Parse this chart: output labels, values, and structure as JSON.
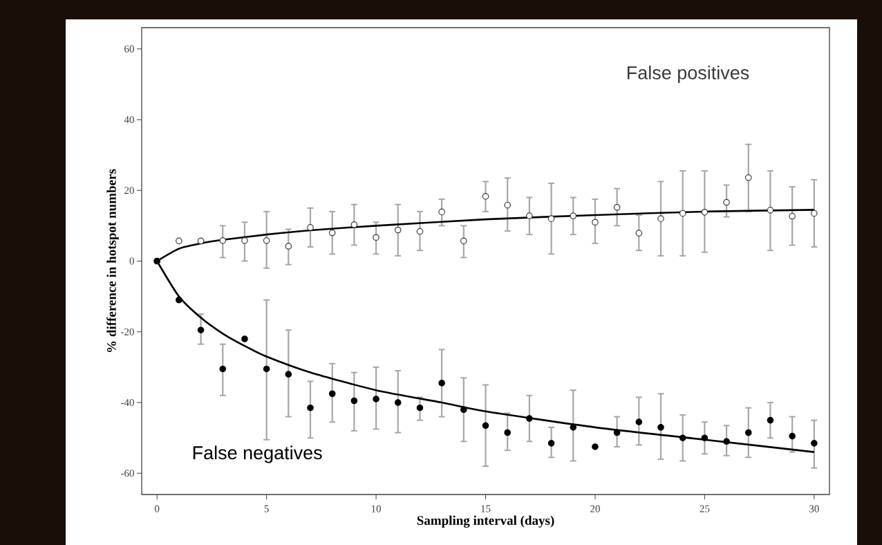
{
  "chart_data": {
    "type": "scatter",
    "xlabel": "Sampling interval (days)",
    "ylabel": "% difference in hotspot numbers",
    "x": [
      0,
      1,
      2,
      3,
      4,
      5,
      6,
      7,
      8,
      9,
      10,
      11,
      12,
      13,
      14,
      15,
      16,
      17,
      18,
      19,
      20,
      21,
      22,
      23,
      24,
      25,
      26,
      27,
      28,
      29,
      30
    ],
    "series": [
      {
        "name": "False positives",
        "color": "#3a3a3a",
        "values": [
          0,
          5.7,
          5.7,
          5.8,
          5.8,
          5.8,
          4.2,
          9.5,
          8,
          10.3,
          6.7,
          8.8,
          8.4,
          13.9,
          5.7,
          18.3,
          15.8,
          12.8,
          12,
          12.8,
          11,
          15.2,
          7.9,
          12,
          13.5,
          13.8,
          16.6,
          23.6,
          14.4,
          12.7,
          13.5
        ],
        "errors": [
          null,
          null,
          null,
          [
            1,
            10
          ],
          [
            0,
            11
          ],
          [
            -2,
            14
          ],
          [
            -1,
            9
          ],
          [
            4,
            15
          ],
          [
            2,
            14
          ],
          [
            4.5,
            16
          ],
          [
            2,
            11
          ],
          [
            1.5,
            16
          ],
          [
            3,
            14
          ],
          [
            10,
            17.5
          ],
          [
            1,
            10
          ],
          [
            14,
            22.5
          ],
          [
            8.5,
            23.5
          ],
          [
            7.5,
            18
          ],
          [
            2,
            22
          ],
          [
            7.5,
            18
          ],
          [
            5,
            17.5
          ],
          [
            10,
            20.5
          ],
          [
            3,
            13
          ],
          [
            1.5,
            22.5
          ],
          [
            1.5,
            25.5
          ],
          [
            2.5,
            25.5
          ],
          [
            12.5,
            21.5
          ],
          [
            14,
            33
          ],
          [
            3,
            25.5
          ],
          [
            4.5,
            21
          ],
          [
            4,
            23
          ]
        ]
      },
      {
        "name": "False negatives",
        "color": "#000000",
        "values": [
          0,
          -11,
          -19.5,
          -30.5,
          -22,
          -30.5,
          -32,
          -41.5,
          -37.5,
          -39.5,
          -39,
          -40,
          -41.5,
          -34.5,
          -42,
          -46.5,
          -48.5,
          -44.5,
          -51.5,
          -47,
          -52.5,
          -48.5,
          -45.5,
          -47,
          -50,
          -50,
          -51,
          -48.5,
          -45,
          -49.5,
          -51.5
        ],
        "errors": [
          null,
          null,
          [
            -23.5,
            -15
          ],
          [
            -38,
            -23.5
          ],
          null,
          [
            -50.5,
            -11
          ],
          [
            -44,
            -19.5
          ],
          [
            -50,
            -34
          ],
          [
            -45.5,
            -29
          ],
          [
            -48,
            -31.5
          ],
          [
            -47.5,
            -30
          ],
          [
            -48.5,
            -31
          ],
          [
            -45,
            -38.5
          ],
          [
            -44,
            -25
          ],
          [
            -51,
            -33
          ],
          [
            -58,
            -35
          ],
          [
            -53.5,
            -43
          ],
          [
            -51,
            -38
          ],
          [
            -55.5,
            -47
          ],
          [
            -56.5,
            -36.5
          ],
          null,
          [
            -52.5,
            -44
          ],
          [
            -52,
            -38.5
          ],
          [
            -56,
            -37.5
          ],
          [
            -56.5,
            -43.5
          ],
          [
            -54.5,
            -45.5
          ],
          [
            -55,
            -46.5
          ],
          [
            -55.5,
            -41.5
          ],
          [
            -50,
            -40
          ],
          [
            -54,
            -44
          ],
          [
            -58.5,
            -45
          ]
        ]
      },
      {
        "type": "line",
        "color": "#000000",
        "line_style": "solid",
        "x": [
          0,
          1,
          2,
          3,
          5,
          7,
          10,
          15,
          20,
          25,
          30
        ],
        "marker": "none",
        "values": [
          0,
          3.5,
          5,
          6,
          7.5,
          8.7,
          10,
          11.8,
          13,
          14,
          14.5
        ]
      },
      {
        "type": "line",
        "color": "#000000",
        "line_style": "solid",
        "x": [
          0,
          1,
          2,
          3,
          4,
          5,
          7,
          10,
          13,
          15,
          20,
          25,
          30
        ],
        "marker": "none",
        "values": [
          0,
          -10,
          -16,
          -20.5,
          -24,
          -27,
          -31.5,
          -36.5,
          -40,
          -42.5,
          -47,
          -50.5,
          -54
        ]
      }
    ],
    "xlim": [
      -0.7,
      30.7
    ],
    "ylim": [
      -66,
      66
    ],
    "xticks": [
      0,
      5,
      10,
      15,
      20,
      25,
      30
    ],
    "yticks": [
      -60,
      -40,
      -20,
      0,
      20,
      40,
      60
    ],
    "grid": false,
    "legend": false
  }
}
